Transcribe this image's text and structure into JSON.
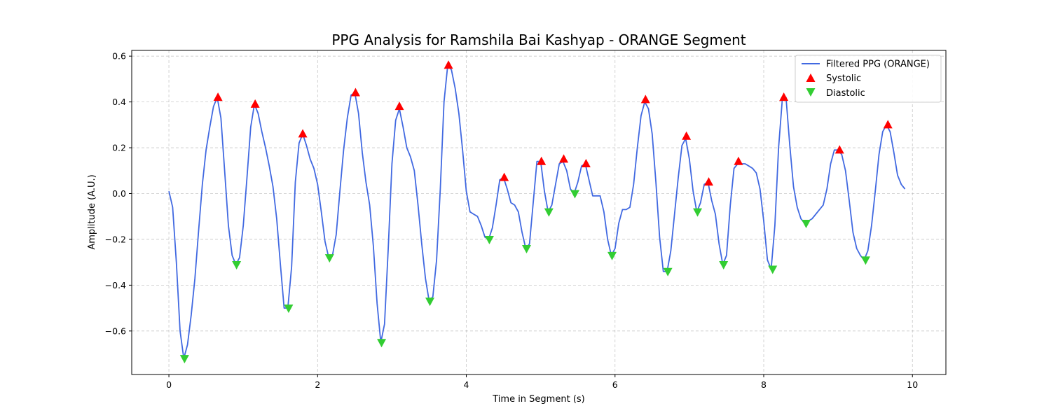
{
  "chart_data": {
    "type": "line",
    "title": "PPG Analysis for Ramshila Bai Kashyap - ORANGE Segment",
    "xlabel": "Time in Segment (s)",
    "ylabel": "Amplitude (A.U.)",
    "xlim": [
      -0.5,
      10.45
    ],
    "ylim": [
      -0.79,
      0.625
    ],
    "xticks": [
      0,
      2,
      4,
      6,
      8,
      10
    ],
    "yticks": [
      -0.6,
      -0.4,
      -0.2,
      0.0,
      0.2,
      0.4,
      0.6
    ],
    "xtick_labels": [
      "0",
      "2",
      "4",
      "6",
      "8",
      "10"
    ],
    "ytick_labels": [
      "−0.6",
      "−0.4",
      "−0.2",
      "0.0",
      "0.2",
      "0.4",
      "0.6"
    ],
    "grid": true,
    "legend_position": "top-right",
    "series": [
      {
        "name": "Filtered PPG (ORANGE)",
        "kind": "line",
        "color": "#4169e1",
        "x": [
          0.0,
          0.05,
          0.1,
          0.15,
          0.2,
          0.25,
          0.3,
          0.35,
          0.4,
          0.45,
          0.5,
          0.55,
          0.6,
          0.65,
          0.7,
          0.75,
          0.8,
          0.85,
          0.9,
          0.95,
          1.0,
          1.05,
          1.1,
          1.15,
          1.2,
          1.25,
          1.3,
          1.35,
          1.4,
          1.45,
          1.5,
          1.55,
          1.6,
          1.65,
          1.7,
          1.75,
          1.8,
          1.85,
          1.9,
          1.95,
          2.0,
          2.05,
          2.1,
          2.15,
          2.2,
          2.25,
          2.3,
          2.35,
          2.4,
          2.45,
          2.5,
          2.55,
          2.6,
          2.65,
          2.7,
          2.75,
          2.8,
          2.85,
          2.9,
          2.95,
          3.0,
          3.05,
          3.1,
          3.15,
          3.2,
          3.25,
          3.3,
          3.35,
          3.4,
          3.45,
          3.5,
          3.55,
          3.6,
          3.65,
          3.7,
          3.75,
          3.8,
          3.85,
          3.9,
          3.95,
          4.0,
          4.05,
          4.1,
          4.15,
          4.2,
          4.25,
          4.3,
          4.35,
          4.4,
          4.45,
          4.5,
          4.55,
          4.6,
          4.65,
          4.7,
          4.75,
          4.8,
          4.85,
          4.9,
          4.95,
          5.0,
          5.05,
          5.1,
          5.15,
          5.2,
          5.25,
          5.3,
          5.35,
          5.4,
          5.45,
          5.5,
          5.55,
          5.6,
          5.65,
          5.7,
          5.75,
          5.8,
          5.85,
          5.9,
          5.95,
          6.0,
          6.05,
          6.1,
          6.15,
          6.2,
          6.25,
          6.3,
          6.35,
          6.4,
          6.45,
          6.5,
          6.55,
          6.6,
          6.65,
          6.7,
          6.75,
          6.8,
          6.85,
          6.9,
          6.95,
          7.0,
          7.05,
          7.1,
          7.15,
          7.2,
          7.25,
          7.3,
          7.35,
          7.4,
          7.45,
          7.5,
          7.55,
          7.6,
          7.65,
          7.7,
          7.75,
          7.8,
          7.85,
          7.9,
          7.95,
          8.0,
          8.05,
          8.1,
          8.15,
          8.2,
          8.25,
          8.3,
          8.35,
          8.4,
          8.45,
          8.5,
          8.55,
          8.6,
          8.65,
          8.7,
          8.75,
          8.8,
          8.85,
          8.9,
          8.95,
          9.0,
          9.05,
          9.1,
          9.15,
          9.2,
          9.25,
          9.3,
          9.35,
          9.4,
          9.45,
          9.5,
          9.55,
          9.6,
          9.65,
          9.7,
          9.75,
          9.8,
          9.85,
          9.9
        ],
        "y": [
          0.01,
          -0.06,
          -0.3,
          -0.6,
          -0.72,
          -0.66,
          -0.53,
          -0.37,
          -0.16,
          0.04,
          0.19,
          0.29,
          0.38,
          0.42,
          0.33,
          0.1,
          -0.14,
          -0.27,
          -0.31,
          -0.28,
          -0.14,
          0.07,
          0.29,
          0.39,
          0.35,
          0.27,
          0.2,
          0.12,
          0.03,
          -0.11,
          -0.31,
          -0.5,
          -0.5,
          -0.32,
          0.05,
          0.22,
          0.26,
          0.21,
          0.15,
          0.11,
          0.04,
          -0.08,
          -0.21,
          -0.28,
          -0.27,
          -0.18,
          0.01,
          0.19,
          0.33,
          0.43,
          0.44,
          0.35,
          0.18,
          0.05,
          -0.05,
          -0.23,
          -0.48,
          -0.65,
          -0.57,
          -0.24,
          0.13,
          0.32,
          0.37,
          0.29,
          0.2,
          0.16,
          0.1,
          -0.05,
          -0.22,
          -0.37,
          -0.47,
          -0.45,
          -0.29,
          0.02,
          0.4,
          0.56,
          0.54,
          0.46,
          0.35,
          0.19,
          0.01,
          -0.08,
          -0.09,
          -0.1,
          -0.14,
          -0.19,
          -0.2,
          -0.15,
          -0.05,
          0.06,
          0.07,
          0.02,
          -0.04,
          -0.05,
          -0.08,
          -0.17,
          -0.24,
          -0.22,
          -0.04,
          0.14,
          0.14,
          0.01,
          -0.08,
          -0.05,
          0.04,
          0.13,
          0.14,
          0.1,
          0.02,
          0.0,
          0.05,
          0.12,
          0.13,
          0.06,
          -0.01,
          -0.01,
          -0.01,
          -0.08,
          -0.2,
          -0.27,
          -0.24,
          -0.13,
          -0.07,
          -0.07,
          -0.06,
          0.04,
          0.2,
          0.34,
          0.4,
          0.37,
          0.26,
          0.05,
          -0.19,
          -0.34,
          -0.34,
          -0.25,
          -0.09,
          0.07,
          0.21,
          0.24,
          0.15,
          0.01,
          -0.08,
          -0.04,
          0.04,
          0.05,
          -0.03,
          -0.09,
          -0.22,
          -0.31,
          -0.27,
          -0.05,
          0.11,
          0.13,
          0.13,
          0.13,
          0.12,
          0.11,
          0.09,
          0.02,
          -0.12,
          -0.29,
          -0.33,
          -0.14,
          0.2,
          0.41,
          0.42,
          0.21,
          0.03,
          -0.06,
          -0.11,
          -0.13,
          -0.12,
          -0.11,
          -0.09,
          -0.07,
          -0.05,
          0.02,
          0.13,
          0.19,
          0.19,
          0.17,
          0.1,
          -0.03,
          -0.17,
          -0.24,
          -0.27,
          -0.29,
          -0.25,
          -0.14,
          0.01,
          0.17,
          0.27,
          0.3,
          0.27,
          0.18,
          0.08,
          0.04,
          0.02
        ]
      },
      {
        "name": "Systolic",
        "kind": "scatter",
        "marker": "triangle-up",
        "color": "#ff0000",
        "x": [
          0.66,
          1.16,
          1.8,
          2.51,
          3.1,
          3.76,
          4.51,
          5.01,
          5.31,
          5.61,
          6.41,
          6.96,
          7.26,
          7.66,
          8.27,
          9.02,
          9.67
        ],
        "y": [
          0.42,
          0.39,
          0.26,
          0.44,
          0.38,
          0.56,
          0.07,
          0.14,
          0.15,
          0.13,
          0.41,
          0.25,
          0.05,
          0.14,
          0.42,
          0.19,
          0.3
        ]
      },
      {
        "name": "Diastolic",
        "kind": "scatter",
        "marker": "triangle-down",
        "color": "#32cd32",
        "x": [
          0.21,
          0.91,
          1.61,
          2.16,
          2.86,
          3.51,
          4.31,
          4.81,
          5.11,
          5.46,
          5.96,
          6.71,
          7.11,
          7.46,
          8.12,
          8.57,
          9.37
        ],
        "y": [
          -0.72,
          -0.31,
          -0.5,
          -0.28,
          -0.65,
          -0.47,
          -0.2,
          -0.24,
          -0.08,
          0.0,
          -0.27,
          -0.34,
          -0.08,
          -0.31,
          -0.33,
          -0.13,
          -0.29
        ]
      }
    ]
  }
}
